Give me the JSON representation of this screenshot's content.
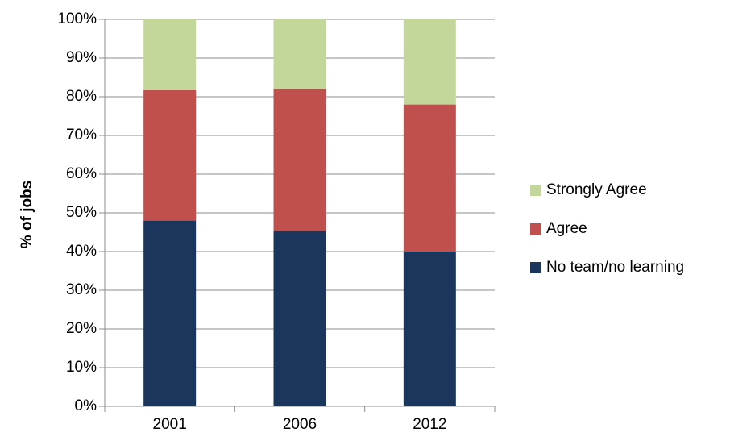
{
  "chart_data": {
    "type": "bar",
    "stacked": true,
    "percent": true,
    "categories": [
      "2001",
      "2006",
      "2012"
    ],
    "series": [
      {
        "name": "No team/no learning",
        "values": [
          48,
          45.3,
          40
        ],
        "color": "#1b365d"
      },
      {
        "name": "Agree",
        "values": [
          33.7,
          36.7,
          38
        ],
        "color": "#c0504d"
      },
      {
        "name": "Strongly Agree",
        "values": [
          18.3,
          18,
          22
        ],
        "color": "#c4d79b"
      }
    ],
    "xlabel": "",
    "ylabel": "% of jobs",
    "ylim": [
      0,
      100
    ],
    "yticks": [
      "0%",
      "10%",
      "20%",
      "30%",
      "40%",
      "50%",
      "60%",
      "70%",
      "80%",
      "90%",
      "100%"
    ],
    "grid": true,
    "legend_position": "right"
  }
}
